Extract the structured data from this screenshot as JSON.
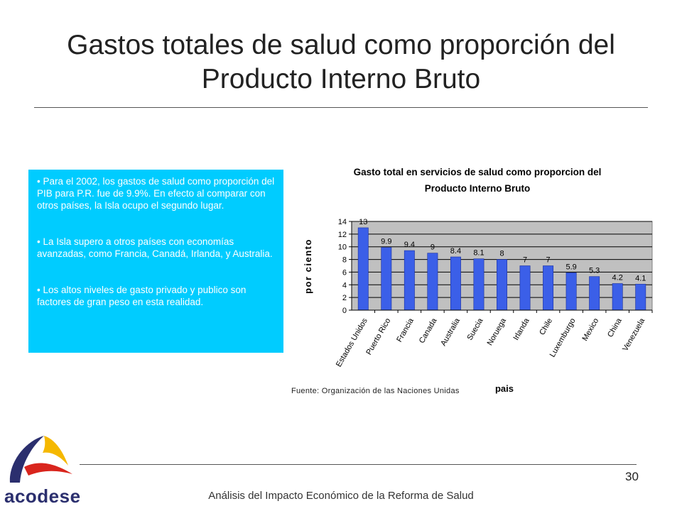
{
  "slide": {
    "title": "Gastos totales de salud como proporción del Producto Interno Bruto",
    "bullets": [
      "• Para el 2002, los gastos de salud como proporción del PIB para P.R.  fue de 9.9%. En efecto al comparar con otros países, la Isla ocupo el segundo lugar.",
      "• La Isla supero a otros países con economías avanzadas, como Francia, Canadá, Irlanda, y Australia.",
      "• Los altos niveles de gasto privado y publico son factores de gran peso en esta realidad."
    ],
    "source": "Fuente: Organización de las Naciones Unidas",
    "page_number": "30",
    "footer": "Análisis del Impacto Económico de la Reforma de Salud",
    "logo_text": "acodese"
  },
  "chart_data": {
    "type": "bar",
    "title_lines": [
      "Gasto total en servicios de salud como proporcion del",
      "Producto Interno Bruto"
    ],
    "xlabel": "pais",
    "ylabel": "por ciento",
    "ylim": [
      0,
      14
    ],
    "yticks": [
      "0",
      "2",
      "4",
      "6",
      "8",
      "10",
      "12",
      "14"
    ],
    "grid": true,
    "categories": [
      "Estados Unidos",
      "Puerto Rico",
      "Francia",
      "Canada",
      "Australia",
      "Suecia",
      "Noruega",
      "Irlanda",
      "Chile",
      "Luxemburgo",
      "Mexico",
      "China",
      "Venezuela"
    ],
    "values": [
      13,
      9.9,
      9.4,
      9,
      8.4,
      8.1,
      8,
      7,
      7,
      5.9,
      5.3,
      4.2,
      4.1
    ],
    "value_labels": [
      "13",
      "9.9",
      "9.4",
      "9",
      "8.4",
      "8.1",
      "8",
      "7",
      "7",
      "5.9",
      "5.3",
      "4.2",
      "4.1"
    ],
    "colors": {
      "bar": "#3b5fe8",
      "plot_bg": "#c0c0c0",
      "grid": "#000000"
    }
  }
}
